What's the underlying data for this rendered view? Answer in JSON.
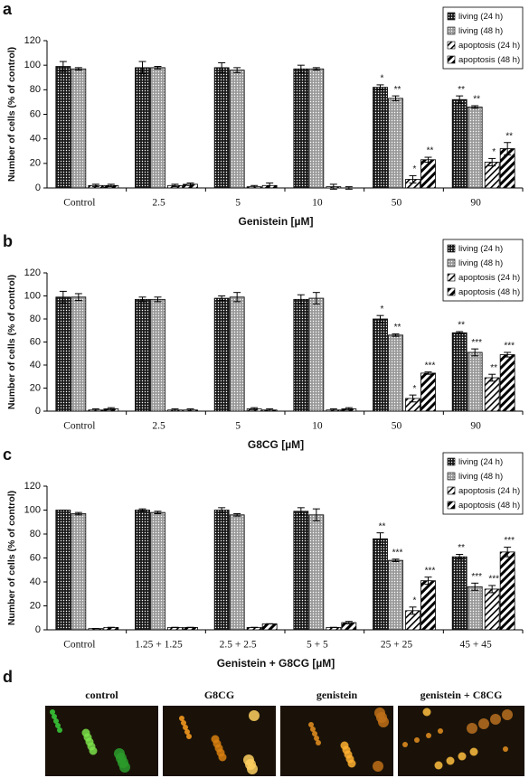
{
  "chart_data": [
    {
      "type": "bar",
      "panel_label": "a",
      "x_label": "Genistein [µM]",
      "y_label": "Number of cells (% of control)",
      "categories": [
        "Control",
        "2.5",
        "5",
        "10",
        "50",
        "90"
      ],
      "ylim": [
        0,
        120
      ],
      "yticks": [
        0,
        20,
        40,
        60,
        80,
        100,
        120
      ],
      "grid": false,
      "legend": "upper right",
      "series": [
        {
          "name": "living (24 h)",
          "color": "#1a1a1a",
          "pattern": "dots",
          "values": [
            99,
            98,
            98,
            97,
            82,
            72
          ],
          "errors": [
            4,
            5,
            4,
            3,
            2,
            3
          ],
          "significance": [
            null,
            null,
            null,
            null,
            "*",
            "**"
          ]
        },
        {
          "name": "living (48 h)",
          "color": "#9a9a9a",
          "pattern": "dots",
          "values": [
            97,
            98,
            96,
            97,
            73,
            66
          ],
          "errors": [
            1,
            1,
            2,
            1,
            2,
            1
          ],
          "significance": [
            null,
            null,
            null,
            null,
            "**",
            "**"
          ]
        },
        {
          "name": "apoptosis (24 h)",
          "color": "#000000",
          "pattern": "hatch",
          "values": [
            2,
            2,
            1,
            1,
            7,
            21
          ],
          "errors": [
            1,
            1,
            1,
            2,
            3,
            3
          ],
          "significance": [
            null,
            null,
            null,
            null,
            "*",
            "*"
          ]
        },
        {
          "name": "apoptosis (48 h)",
          "color": "#000000",
          "pattern": "hatch-wide",
          "values": [
            2,
            3,
            2,
            0,
            23,
            32
          ],
          "errors": [
            1,
            1,
            2,
            1,
            2,
            5
          ],
          "significance": [
            null,
            null,
            null,
            null,
            "**",
            "**"
          ]
        }
      ]
    },
    {
      "type": "bar",
      "panel_label": "b",
      "x_label": "G8CG [µM]",
      "y_label": "Number of cells (% of control)",
      "categories": [
        "Control",
        "2.5",
        "5",
        "10",
        "50",
        "90"
      ],
      "ylim": [
        0,
        120
      ],
      "yticks": [
        0,
        20,
        40,
        60,
        80,
        100,
        120
      ],
      "grid": false,
      "legend": "upper right",
      "series": [
        {
          "name": "living (24 h)",
          "color": "#1a1a1a",
          "pattern": "dots",
          "values": [
            99,
            97,
            98,
            97,
            80,
            68
          ],
          "errors": [
            5,
            2,
            2,
            4,
            3,
            1
          ],
          "significance": [
            null,
            null,
            null,
            null,
            "*",
            "**"
          ]
        },
        {
          "name": "living (48 h)",
          "color": "#9a9a9a",
          "pattern": "dots",
          "values": [
            99,
            97,
            99,
            98,
            66,
            51
          ],
          "errors": [
            3,
            2,
            4,
            5,
            1,
            3
          ],
          "significance": [
            null,
            null,
            null,
            null,
            "**",
            "***"
          ]
        },
        {
          "name": "apoptosis (24 h)",
          "color": "#000000",
          "pattern": "hatch",
          "values": [
            1,
            1,
            2,
            1,
            11,
            29
          ],
          "errors": [
            1,
            1,
            1,
            1,
            3,
            3
          ],
          "significance": [
            null,
            null,
            null,
            null,
            "*",
            "**"
          ]
        },
        {
          "name": "apoptosis (48 h)",
          "color": "#000000",
          "pattern": "hatch-wide",
          "values": [
            2,
            1,
            1,
            2,
            33,
            49
          ],
          "errors": [
            1,
            1,
            1,
            1,
            1,
            2
          ],
          "significance": [
            null,
            null,
            null,
            null,
            "***",
            "***"
          ]
        }
      ]
    },
    {
      "type": "bar",
      "panel_label": "c",
      "x_label": "Genistein + G8CG [µM]",
      "y_label": "Number of cells (% of control)",
      "categories": [
        "Control",
        "1.25 + 1.25",
        "2.5 + 2.5",
        "5 + 5",
        "25 + 25",
        "45 + 45"
      ],
      "ylim": [
        0,
        120
      ],
      "yticks": [
        0,
        20,
        40,
        60,
        80,
        100,
        120
      ],
      "grid": false,
      "legend": "upper right",
      "series": [
        {
          "name": "living (24 h)",
          "color": "#1a1a1a",
          "pattern": "dots",
          "values": [
            100,
            100,
            100,
            99,
            76,
            61
          ],
          "errors": [
            0,
            1,
            2,
            3,
            5,
            2
          ],
          "significance": [
            null,
            null,
            null,
            null,
            "**",
            "**"
          ]
        },
        {
          "name": "living (48 h)",
          "color": "#9a9a9a",
          "pattern": "dots",
          "values": [
            97,
            98,
            96,
            96,
            58,
            36
          ],
          "errors": [
            1,
            1,
            1,
            5,
            1,
            3
          ],
          "significance": [
            null,
            null,
            null,
            null,
            "***",
            "***"
          ]
        },
        {
          "name": "apoptosis (24 h)",
          "color": "#000000",
          "pattern": "hatch",
          "values": [
            1,
            2,
            2,
            2,
            16,
            34
          ],
          "errors": [
            0,
            0,
            0,
            0,
            3,
            3
          ],
          "significance": [
            null,
            null,
            null,
            null,
            "*",
            "***"
          ]
        },
        {
          "name": "apoptosis (48 h)",
          "color": "#000000",
          "pattern": "hatch-wide",
          "values": [
            2,
            2,
            5,
            6,
            41,
            65
          ],
          "errors": [
            0,
            0,
            0,
            1,
            3,
            4
          ],
          "significance": [
            null,
            null,
            null,
            null,
            "***",
            "***"
          ]
        }
      ]
    }
  ],
  "panel_d": {
    "label": "d",
    "captions": [
      "control",
      "G8CG",
      "genistein",
      "genistein + C8CG"
    ]
  }
}
